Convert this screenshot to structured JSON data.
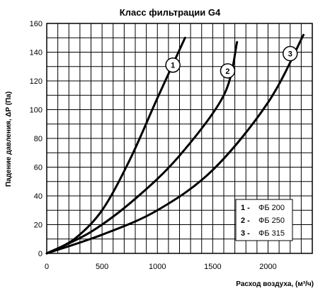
{
  "chart_data": {
    "type": "line",
    "title": "Класс  фильтрации  G4",
    "xlabel": "Расход воздуха, (м³/ч)",
    "ylabel": "Падение давления, ΔP (Па)",
    "xlim": [
      0,
      2400
    ],
    "ylim": [
      0,
      160
    ],
    "x_ticks": [
      0,
      500,
      1000,
      1500,
      2000
    ],
    "y_ticks": [
      0,
      20,
      40,
      60,
      80,
      100,
      120,
      140,
      160
    ],
    "grid": true,
    "legend_position": "bottom-right",
    "series": [
      {
        "name": "ФБ 200",
        "marker_label": "1",
        "points": [
          [
            0,
            0
          ],
          [
            250,
            10
          ],
          [
            500,
            30
          ],
          [
            750,
            65
          ],
          [
            1000,
            108
          ],
          [
            1250,
            150
          ]
        ]
      },
      {
        "name": "ФБ 250",
        "marker_label": "2",
        "points": [
          [
            0,
            0
          ],
          [
            400,
            15
          ],
          [
            800,
            38
          ],
          [
            1200,
            68
          ],
          [
            1600,
            110
          ],
          [
            1720,
            147
          ]
        ]
      },
      {
        "name": "ФБ 315",
        "marker_label": "3",
        "points": [
          [
            0,
            0
          ],
          [
            500,
            13
          ],
          [
            1000,
            30
          ],
          [
            1500,
            58
          ],
          [
            2000,
            105
          ],
          [
            2320,
            152
          ]
        ]
      }
    ],
    "legend": [
      {
        "num": "1 -",
        "text": "ФБ 200"
      },
      {
        "num": "2 -",
        "text": "ФБ 250"
      },
      {
        "num": "3 -",
        "text": "ФБ 315"
      }
    ]
  }
}
